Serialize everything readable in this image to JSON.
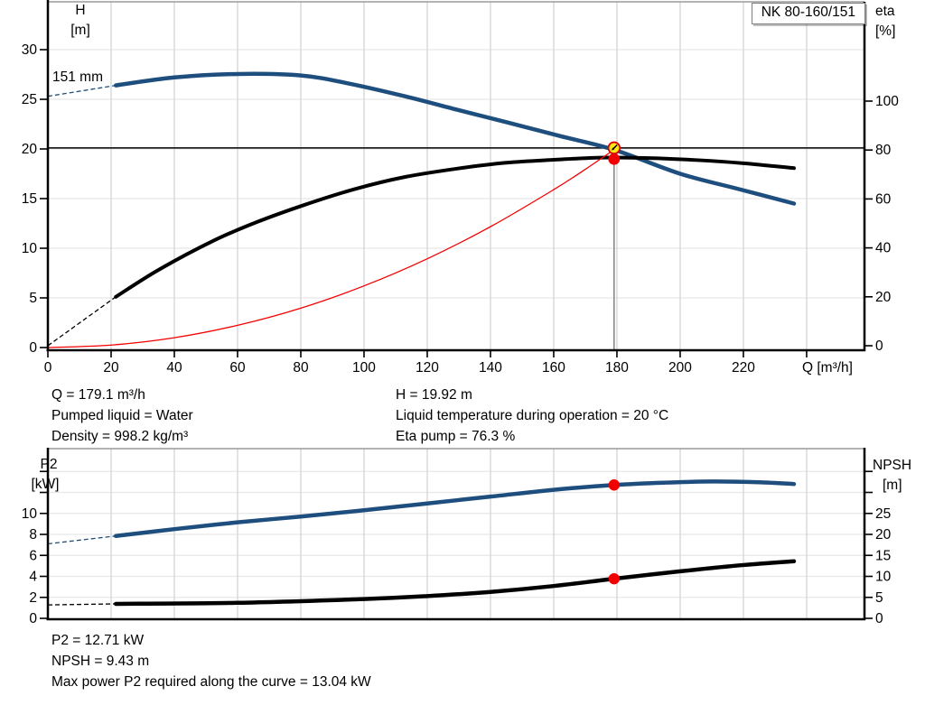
{
  "pump_model": "NK 80-160/151",
  "colors": {
    "blue": "#1d4e7e",
    "black": "#000000",
    "red": "#f40000",
    "marker_red": "#f00000",
    "marker_yellow": "#ffe616",
    "marker_yellow_ring": "#dd0000",
    "grid_v": "#d4d4d4",
    "grid_h": "#e7e7e7",
    "frame": "#9a9a9a",
    "duty_line": "#7a7a7a",
    "axis": "#000000"
  },
  "info_top_left": [
    "Q = 179.1 m³/h",
    "Pumped liquid = Water",
    "Density = 998.2 kg/m³"
  ],
  "info_top_right": [
    "H = 19.92 m",
    "Liquid temperature during operation = 20 °C",
    "Eta pump = 76.3 %"
  ],
  "info_bottom": [
    "P2 = 12.71 kW",
    "NPSH = 9.43 m",
    "Max power P2 required along the curve = 13.04 kW"
  ],
  "chart_data": [
    {
      "type": "line",
      "id": "qh-eta-chart",
      "x_axis": {
        "label": "Q [m³/h]",
        "range": [
          0,
          258.3
        ],
        "ticks": [
          0,
          20,
          40,
          60,
          80,
          100,
          120,
          140,
          160,
          180,
          200,
          220
        ],
        "unlabeled_ticks": [
          240
        ],
        "grid": true
      },
      "y_left": {
        "label_lines": [
          "H",
          "[m]"
        ],
        "range": [
          0,
          35
        ],
        "ticks": [
          0,
          5,
          10,
          15,
          20,
          25,
          30
        ],
        "grid": true
      },
      "y_right": {
        "label_lines": [
          "eta",
          "[%]"
        ],
        "range": [
          0,
          141
        ],
        "ticks": [
          0,
          20,
          40,
          60,
          80,
          100
        ]
      },
      "series": [
        {
          "name": "pump-curve",
          "label": "151 mm",
          "axis": "left",
          "color_key": "blue",
          "width": 4.5,
          "dash_lead": [
            [
              0,
              25.3
            ],
            [
              21.5,
              26.4
            ]
          ],
          "points": [
            [
              21.5,
              26.4
            ],
            [
              40,
              27.2
            ],
            [
              60,
              27.55
            ],
            [
              80,
              27.4
            ],
            [
              95,
              26.6
            ],
            [
              113,
              25.3
            ],
            [
              130,
              23.9
            ],
            [
              145,
              22.7
            ],
            [
              162,
              21.3
            ],
            [
              179.1,
              19.92
            ],
            [
              200,
              17.5
            ],
            [
              218,
              16.0
            ],
            [
              236,
              14.5
            ]
          ]
        },
        {
          "name": "efficiency-curve",
          "axis": "right",
          "color_key": "black",
          "width": 4,
          "dash_lead": [
            [
              0,
              0
            ],
            [
              21.5,
              20
            ]
          ],
          "points": [
            [
              21.5,
              20
            ],
            [
              35,
              31
            ],
            [
              52.5,
              43
            ],
            [
              66,
              50.5
            ],
            [
              81,
              57.5
            ],
            [
              97,
              64
            ],
            [
              113,
              69
            ],
            [
              130,
              72.5
            ],
            [
              145,
              74.8
            ],
            [
              160,
              76
            ],
            [
              175,
              76.9
            ],
            [
              190,
              76.7
            ],
            [
              205,
              75.9
            ],
            [
              220,
              74.6
            ],
            [
              236,
              72.6
            ]
          ]
        },
        {
          "name": "system-curve",
          "axis": "left",
          "color_key": "red",
          "width": 1.3,
          "points": [
            [
              0,
              0
            ],
            [
              20,
              0.25
            ],
            [
              40,
              0.99
            ],
            [
              60,
              2.24
            ],
            [
              80,
              3.97
            ],
            [
              100,
              6.21
            ],
            [
              120,
              8.94
            ],
            [
              140,
              12.17
            ],
            [
              160,
              15.9
            ],
            [
              170,
              17.95
            ],
            [
              179.1,
              19.92
            ]
          ]
        }
      ],
      "duty_point": {
        "q": 179.1,
        "h": 19.92,
        "eta": 76.3
      }
    },
    {
      "type": "line",
      "id": "p2-npsh-chart",
      "x_axis": {
        "range": [
          0,
          258.3
        ],
        "grid": true
      },
      "y_left": {
        "label_lines": [
          "P2",
          "[kW]"
        ],
        "range": [
          0,
          16.2
        ],
        "ticks": [
          0,
          2,
          4,
          6,
          8,
          10
        ],
        "unlabeled_ticks": [
          12,
          14
        ],
        "grid": true
      },
      "y_right": {
        "label_lines": [
          "NPSH",
          "[m]"
        ],
        "range": [
          0,
          40.4
        ],
        "ticks": [
          0,
          5,
          10,
          15,
          20,
          25
        ],
        "unlabeled_ticks": [
          30,
          35
        ]
      },
      "series": [
        {
          "name": "p2-curve",
          "axis": "left",
          "color_key": "blue",
          "width": 4.5,
          "dash_lead": [
            [
              0,
              7.1
            ],
            [
              21.5,
              7.85
            ]
          ],
          "points": [
            [
              21.5,
              7.85
            ],
            [
              40,
              8.5
            ],
            [
              60,
              9.15
            ],
            [
              80,
              9.7
            ],
            [
              100,
              10.3
            ],
            [
              120,
              10.95
            ],
            [
              140,
              11.6
            ],
            [
              160,
              12.25
            ],
            [
              179.1,
              12.71
            ],
            [
              195,
              12.93
            ],
            [
              210,
              13.04
            ],
            [
              225,
              12.97
            ],
            [
              236,
              12.8
            ]
          ]
        },
        {
          "name": "npsh-curve",
          "axis": "right",
          "color_key": "black",
          "width": 4.5,
          "dash_lead": [
            [
              0,
              3.2
            ],
            [
              21.5,
              3.45
            ]
          ],
          "points": [
            [
              21.5,
              3.45
            ],
            [
              60,
              3.7
            ],
            [
              100,
              4.6
            ],
            [
              120,
              5.3
            ],
            [
              140,
              6.3
            ],
            [
              160,
              7.7
            ],
            [
              179.1,
              9.43
            ],
            [
              200,
              11.2
            ],
            [
              220,
              12.7
            ],
            [
              236,
              13.6
            ]
          ]
        }
      ],
      "duty_markers": [
        {
          "q": 179.1,
          "value": 12.71,
          "axis": "left"
        },
        {
          "q": 179.1,
          "value": 9.43,
          "axis": "right"
        }
      ]
    }
  ]
}
